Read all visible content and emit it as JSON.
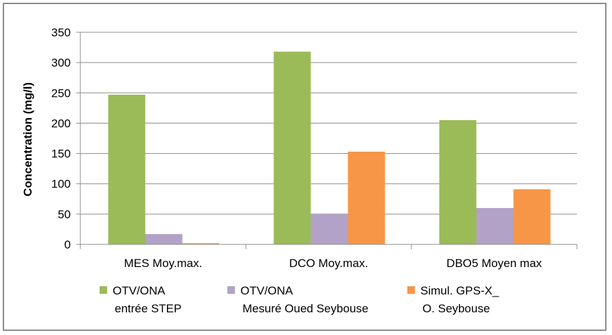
{
  "chart_data": {
    "type": "bar",
    "title": "",
    "xlabel": "",
    "ylabel": "Concentration (mg/l)",
    "ylim": [
      0,
      350
    ],
    "yticks": [
      0,
      50,
      100,
      150,
      200,
      250,
      300,
      350
    ],
    "grid": true,
    "legend_position": "bottom",
    "categories": [
      "MES Moy.max.",
      "DCO Moy.max.",
      "DBO5 Moyen max"
    ],
    "series": [
      {
        "name": [
          "OTV/ONA",
          "entrée STEP"
        ],
        "color": "#9bbb59",
        "values": [
          247,
          318,
          205
        ]
      },
      {
        "name": [
          "OTV/ONA",
          "Mesuré Oued Seybouse"
        ],
        "color": "#b3a2c7",
        "values": [
          17,
          50,
          60
        ]
      },
      {
        "name": [
          "Simul. GPS-X_",
          "O. Seybouse"
        ],
        "color": "#f79646",
        "values": [
          2,
          153,
          91
        ]
      }
    ]
  }
}
